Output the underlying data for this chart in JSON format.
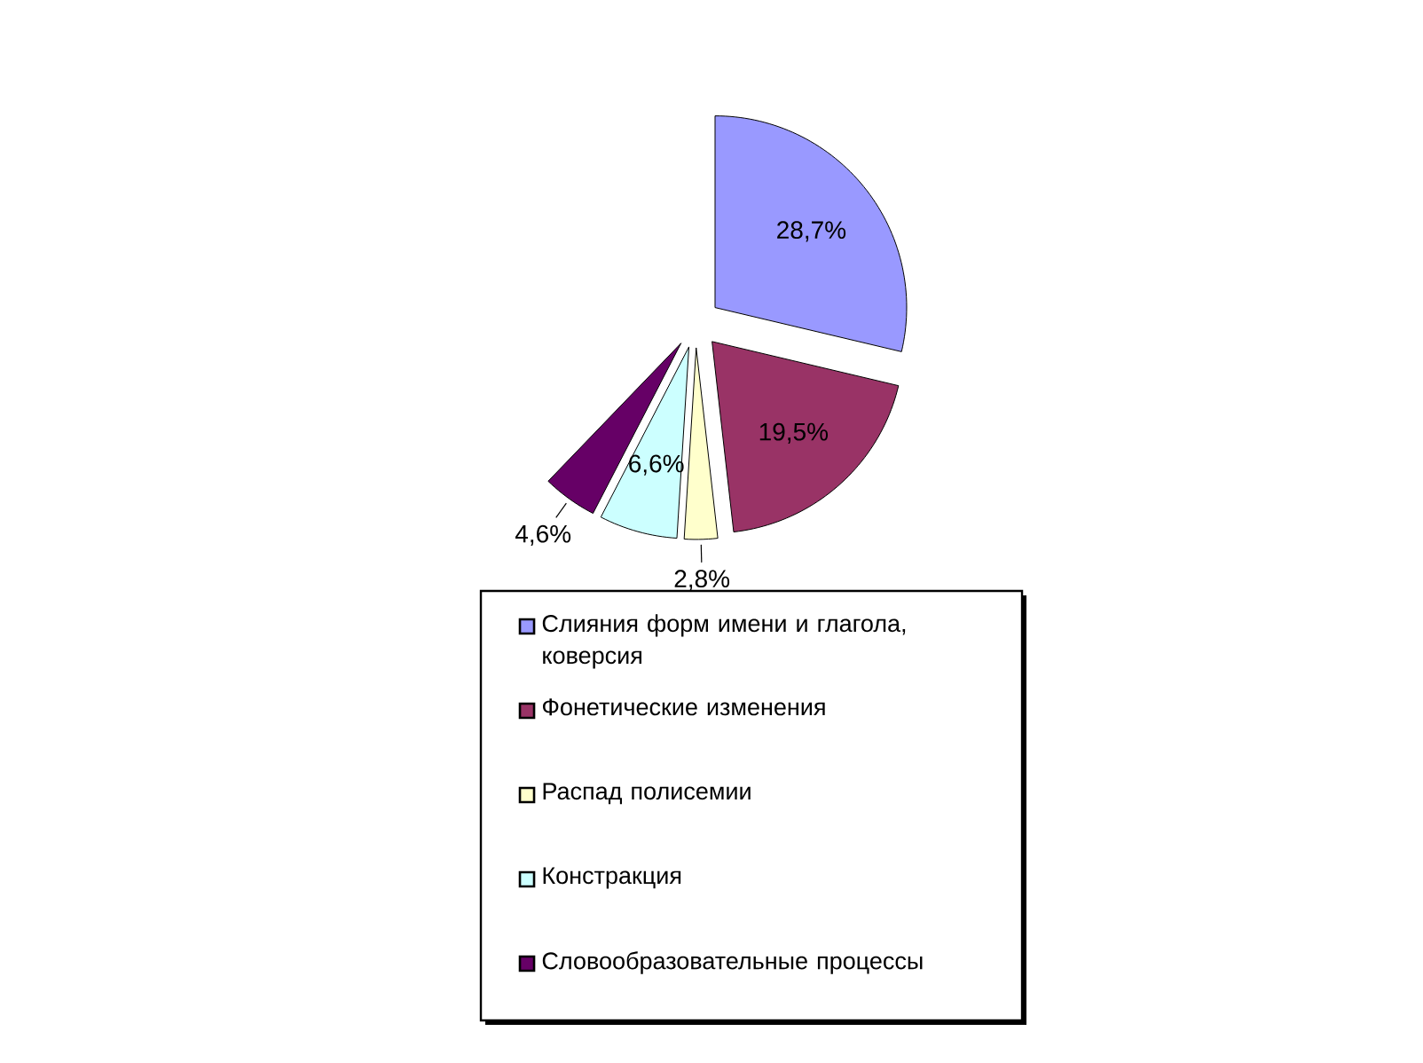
{
  "chart_data": {
    "type": "pie",
    "categories": [
      "Слияния форм имени и глагола, коверсия",
      "Фонетические изменения",
      "Распад полисемии",
      "Констракция",
      "Словообразовательные процессы"
    ],
    "values": [
      28.7,
      19.5,
      2.8,
      6.6,
      4.6
    ],
    "colors": [
      "#9999ff",
      "#993366",
      "#ffffcc",
      "#ccffff",
      "#660066"
    ],
    "value_labels": [
      "28,7%",
      "19,5%",
      "2,8%",
      "6,6%",
      "4,6%"
    ],
    "legend": "bottom"
  }
}
